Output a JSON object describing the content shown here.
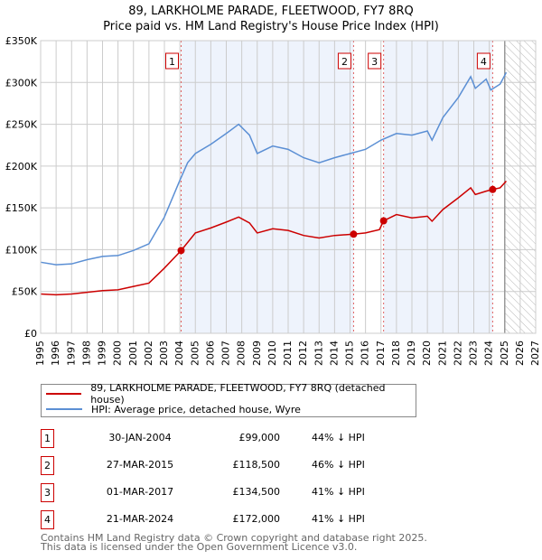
{
  "chart_data": {
    "type": "line",
    "title": "89, LARKHOLME PARADE, FLEETWOOD, FY7 8RQ",
    "subtitle": "Price paid vs. HM Land Registry's House Price Index (HPI)",
    "xlim": [
      1995,
      2027
    ],
    "ylim": [
      0,
      350000
    ],
    "x_ticks": [
      "1995",
      "1996",
      "1997",
      "1998",
      "1999",
      "2000",
      "2001",
      "2002",
      "2003",
      "2004",
      "2005",
      "2006",
      "2007",
      "2008",
      "2009",
      "2010",
      "2011",
      "2012",
      "2013",
      "2014",
      "2015",
      "2016",
      "2017",
      "2018",
      "2019",
      "2020",
      "2021",
      "2022",
      "2023",
      "2024",
      "2025",
      "2026",
      "2027"
    ],
    "y_ticks": [
      {
        "v": 0,
        "label": "£0"
      },
      {
        "v": 50000,
        "label": "£50K"
      },
      {
        "v": 100000,
        "label": "£100K"
      },
      {
        "v": 150000,
        "label": "£150K"
      },
      {
        "v": 200000,
        "label": "£200K"
      },
      {
        "v": 250000,
        "label": "£250K"
      },
      {
        "v": 300000,
        "label": "£300K"
      },
      {
        "v": 350000,
        "label": "£350K"
      }
    ],
    "grid": true,
    "forecast_start": 2025.0,
    "series": [
      {
        "name": "89, LARKHOLME PARADE, FLEETWOOD, FY7 8RQ (detached house)",
        "color": "#cc0000",
        "x": [
          1995,
          1996,
          1997,
          1998,
          1999,
          2000,
          2001,
          2002,
          2003,
          2004.08,
          2005,
          2006,
          2007,
          2007.8,
          2008.5,
          2009,
          2010,
          2011,
          2012,
          2013,
          2014,
          2015.23,
          2016,
          2016.9,
          2017.17,
          2018,
          2019,
          2020,
          2020.3,
          2021,
          2022,
          2022.8,
          2023.1,
          2023.8,
          2024.22,
          2024.7,
          2025.1
        ],
        "y": [
          47000,
          46000,
          47000,
          49000,
          51000,
          52000,
          56000,
          60000,
          78000,
          99000,
          120000,
          126000,
          133000,
          139000,
          132000,
          120000,
          125000,
          123000,
          117000,
          114000,
          117000,
          118500,
          120000,
          124000,
          134500,
          142000,
          138000,
          140000,
          134000,
          148000,
          162000,
          174000,
          166000,
          170000,
          172000,
          174000,
          182000
        ]
      },
      {
        "name": "HPI: Average price, detached house, Wyre",
        "color": "#5b8fd4",
        "x": [
          1995,
          1996,
          1997,
          1998,
          1999,
          2000,
          2001,
          2002,
          2003,
          2004,
          2004.5,
          2005,
          2006,
          2007,
          2007.8,
          2008.5,
          2009,
          2010,
          2011,
          2012,
          2013,
          2014,
          2015,
          2016,
          2017,
          2018,
          2019,
          2020,
          2020.3,
          2021,
          2022,
          2022.8,
          2023.1,
          2023.8,
          2024.1,
          2024.7,
          2025.1
        ],
        "y": [
          85000,
          82000,
          83000,
          88000,
          92000,
          93000,
          99000,
          107000,
          139000,
          183000,
          204000,
          215000,
          226000,
          239000,
          250000,
          237000,
          215000,
          224000,
          220000,
          210000,
          204000,
          210000,
          215000,
          220000,
          231000,
          239000,
          237000,
          242000,
          231000,
          258000,
          282000,
          307000,
          293000,
          304000,
          291000,
          298000,
          312000
        ]
      }
    ],
    "sales": [
      {
        "n": "1",
        "x": 2004.08,
        "date": "30-JAN-2004",
        "price": "£99,000",
        "value": 99000,
        "pct": "44% ↓ HPI"
      },
      {
        "n": "2",
        "x": 2015.23,
        "date": "27-MAR-2015",
        "price": "£118,500",
        "value": 118500,
        "pct": "46% ↓ HPI"
      },
      {
        "n": "3",
        "x": 2017.17,
        "date": "01-MAR-2017",
        "price": "£134,500",
        "value": 134500,
        "pct": "41% ↓ HPI"
      },
      {
        "n": "4",
        "x": 2024.22,
        "date": "21-MAR-2024",
        "price": "£172,000",
        "value": 172000,
        "pct": "41% ↓ HPI"
      }
    ],
    "legend_position": "below"
  },
  "footer": {
    "line1": "Contains HM Land Registry data © Crown copyright and database right 2025.",
    "line2": "This data is licensed under the Open Government Licence v3.0."
  }
}
